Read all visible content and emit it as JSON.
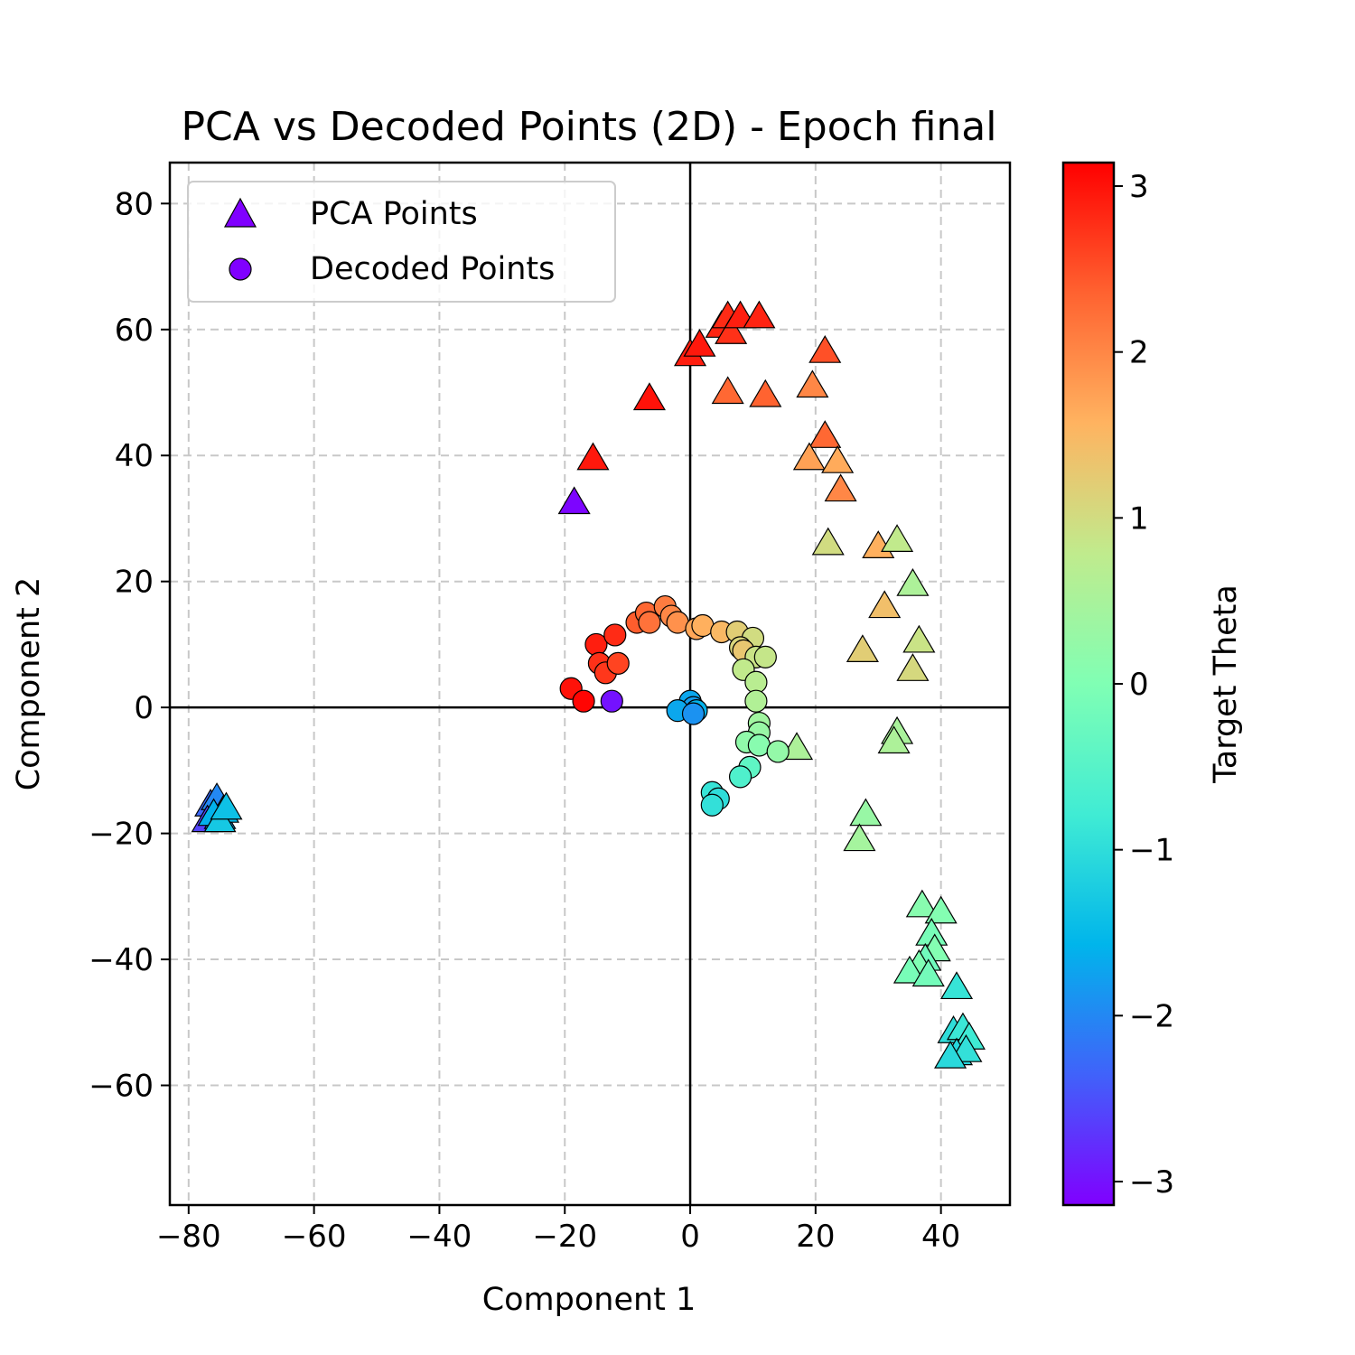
{
  "chart_data": {
    "type": "scatter",
    "title": "PCA vs Decoded Points (2D) - Epoch final",
    "xlabel": "Component 1",
    "ylabel": "Component 2",
    "xlim": [
      -83,
      51
    ],
    "ylim": [
      -79,
      86.5
    ],
    "xticks": [
      -80,
      -60,
      -40,
      -20,
      0,
      20,
      40
    ],
    "yticks": [
      -60,
      -40,
      -20,
      0,
      20,
      40,
      60,
      80
    ],
    "grid": true,
    "reference_lines": [
      "x=0",
      "y=0"
    ],
    "legend_position": "upper-left",
    "colorbar": {
      "label": "Target Theta",
      "colormap": "rainbow",
      "range": [
        -3.14159,
        3.14159
      ],
      "ticks": [
        -3,
        -2,
        -1,
        0,
        1,
        2,
        3
      ]
    },
    "series": [
      {
        "name": "PCA Points",
        "marker": "triangle",
        "points": [
          {
            "x": -76.5,
            "y": -15.5,
            "theta": -2.3
          },
          {
            "x": -75.5,
            "y": -14.5,
            "theta": -2.0
          },
          {
            "x": -77.0,
            "y": -18.0,
            "theta": -2.6
          },
          {
            "x": -75.0,
            "y": -17.5,
            "theta": -1.8
          },
          {
            "x": -74.5,
            "y": -16.5,
            "theta": -1.5
          },
          {
            "x": -76.0,
            "y": -17.0,
            "theta": -1.6
          },
          {
            "x": -75.0,
            "y": -18.0,
            "theta": -1.3
          },
          {
            "x": -74.0,
            "y": -16.0,
            "theta": -1.4
          },
          {
            "x": -18.5,
            "y": 32.5,
            "theta": -3.1
          },
          {
            "x": -15.5,
            "y": 39.5,
            "theta": 2.95
          },
          {
            "x": -6.5,
            "y": 49.0,
            "theta": 3.0
          },
          {
            "x": 0.0,
            "y": 56.0,
            "theta": 2.9
          },
          {
            "x": 1.5,
            "y": 57.5,
            "theta": 2.95
          },
          {
            "x": 5.0,
            "y": 60.5,
            "theta": 2.85
          },
          {
            "x": 6.0,
            "y": 62.0,
            "theta": 2.8
          },
          {
            "x": 6.5,
            "y": 59.5,
            "theta": 2.75
          },
          {
            "x": 8.0,
            "y": 62.0,
            "theta": 2.9
          },
          {
            "x": 11.0,
            "y": 62.0,
            "theta": 2.85
          },
          {
            "x": 6.0,
            "y": 50.0,
            "theta": 2.3
          },
          {
            "x": 12.0,
            "y": 49.5,
            "theta": 2.35
          },
          {
            "x": 21.5,
            "y": 56.5,
            "theta": 2.5
          },
          {
            "x": 19.5,
            "y": 51.0,
            "theta": 2.0
          },
          {
            "x": 21.5,
            "y": 43.0,
            "theta": 2.3
          },
          {
            "x": 19.0,
            "y": 39.5,
            "theta": 1.75
          },
          {
            "x": 23.5,
            "y": 39.0,
            "theta": 1.65
          },
          {
            "x": 24.0,
            "y": 34.5,
            "theta": 2.0
          },
          {
            "x": 22.0,
            "y": 26.0,
            "theta": 1.0
          },
          {
            "x": 30.0,
            "y": 25.5,
            "theta": 1.6
          },
          {
            "x": 33.0,
            "y": 26.5,
            "theta": 0.8
          },
          {
            "x": 35.5,
            "y": 19.5,
            "theta": 0.55
          },
          {
            "x": 31.0,
            "y": 16.0,
            "theta": 1.4
          },
          {
            "x": 27.5,
            "y": 9.0,
            "theta": 1.2
          },
          {
            "x": 36.5,
            "y": 10.5,
            "theta": 0.9
          },
          {
            "x": 35.5,
            "y": 6.0,
            "theta": 1.05
          },
          {
            "x": 17.0,
            "y": -6.5,
            "theta": 0.55
          },
          {
            "x": 33.0,
            "y": -4.0,
            "theta": 0.5
          },
          {
            "x": 32.5,
            "y": -5.5,
            "theta": 0.55
          },
          {
            "x": 28.0,
            "y": -17.0,
            "theta": 0.3
          },
          {
            "x": 27.0,
            "y": -21.0,
            "theta": 0.45
          },
          {
            "x": 37.0,
            "y": -31.5,
            "theta": 0.1
          },
          {
            "x": 40.0,
            "y": -32.5,
            "theta": 0.05
          },
          {
            "x": 38.5,
            "y": -36.0,
            "theta": -0.1
          },
          {
            "x": 39.0,
            "y": -38.5,
            "theta": 0.05
          },
          {
            "x": 37.5,
            "y": -40.0,
            "theta": -0.2
          },
          {
            "x": 36.5,
            "y": -41.0,
            "theta": 0.0
          },
          {
            "x": 35.0,
            "y": -42.0,
            "theta": -0.1
          },
          {
            "x": 38.0,
            "y": -42.5,
            "theta": -0.15
          },
          {
            "x": 42.5,
            "y": -44.5,
            "theta": -0.9
          },
          {
            "x": 42.0,
            "y": -51.5,
            "theta": -1.0
          },
          {
            "x": 43.5,
            "y": -51.0,
            "theta": -0.85
          },
          {
            "x": 44.5,
            "y": -52.5,
            "theta": -0.8
          },
          {
            "x": 42.5,
            "y": -55.0,
            "theta": -1.1
          },
          {
            "x": 44.0,
            "y": -54.5,
            "theta": -0.95
          },
          {
            "x": 41.5,
            "y": -55.5,
            "theta": -1.05
          }
        ]
      },
      {
        "name": "Decoded Points",
        "marker": "circle",
        "points": [
          {
            "x": -19.0,
            "y": 3.0,
            "theta": 3.0
          },
          {
            "x": -17.0,
            "y": 1.0,
            "theta": 3.1
          },
          {
            "x": -12.5,
            "y": 1.0,
            "theta": -3.0
          },
          {
            "x": -15.0,
            "y": 10.0,
            "theta": 2.9
          },
          {
            "x": -12.0,
            "y": 11.5,
            "theta": 2.8
          },
          {
            "x": -14.5,
            "y": 7.0,
            "theta": 2.75
          },
          {
            "x": -13.5,
            "y": 5.5,
            "theta": 2.7
          },
          {
            "x": -11.5,
            "y": 7.0,
            "theta": 2.6
          },
          {
            "x": -8.5,
            "y": 13.5,
            "theta": 2.4
          },
          {
            "x": -7.0,
            "y": 15.0,
            "theta": 2.3
          },
          {
            "x": -6.5,
            "y": 13.5,
            "theta": 2.2
          },
          {
            "x": -4.0,
            "y": 16.0,
            "theta": 2.1
          },
          {
            "x": -3.0,
            "y": 14.5,
            "theta": 2.0
          },
          {
            "x": -2.0,
            "y": 13.5,
            "theta": 1.9
          },
          {
            "x": 1.0,
            "y": 12.5,
            "theta": 1.7
          },
          {
            "x": 2.0,
            "y": 13.0,
            "theta": 1.6
          },
          {
            "x": 5.0,
            "y": 12.0,
            "theta": 1.5
          },
          {
            "x": 7.5,
            "y": 12.0,
            "theta": 1.2
          },
          {
            "x": 10.0,
            "y": 11.0,
            "theta": 1.0
          },
          {
            "x": 8.0,
            "y": 9.5,
            "theta": 1.1
          },
          {
            "x": 8.5,
            "y": 9.0,
            "theta": 1.3
          },
          {
            "x": 10.5,
            "y": 8.0,
            "theta": 0.9
          },
          {
            "x": 12.0,
            "y": 8.0,
            "theta": 0.85
          },
          {
            "x": 8.5,
            "y": 6.0,
            "theta": 0.8
          },
          {
            "x": 10.5,
            "y": 4.0,
            "theta": 0.7
          },
          {
            "x": 10.5,
            "y": 1.0,
            "theta": 0.6
          },
          {
            "x": 11.0,
            "y": -2.5,
            "theta": 0.4
          },
          {
            "x": 11.0,
            "y": -4.0,
            "theta": 0.3
          },
          {
            "x": 9.0,
            "y": -5.5,
            "theta": 0.2
          },
          {
            "x": 11.0,
            "y": -6.0,
            "theta": 0.1
          },
          {
            "x": 14.0,
            "y": -7.0,
            "theta": 0.25
          },
          {
            "x": 9.5,
            "y": -9.5,
            "theta": -0.4
          },
          {
            "x": 8.0,
            "y": -11.0,
            "theta": -0.6
          },
          {
            "x": 3.5,
            "y": -13.5,
            "theta": -0.9
          },
          {
            "x": 4.5,
            "y": -14.5,
            "theta": -1.0
          },
          {
            "x": 3.5,
            "y": -15.5,
            "theta": -0.95
          },
          {
            "x": 0.0,
            "y": 1.0,
            "theta": -1.7
          },
          {
            "x": 0.5,
            "y": 0.0,
            "theta": -1.8
          },
          {
            "x": -2.0,
            "y": -0.5,
            "theta": -1.7
          },
          {
            "x": 1.0,
            "y": -0.5,
            "theta": -1.6
          },
          {
            "x": 0.5,
            "y": -1.0,
            "theta": -1.9
          }
        ]
      }
    ]
  }
}
